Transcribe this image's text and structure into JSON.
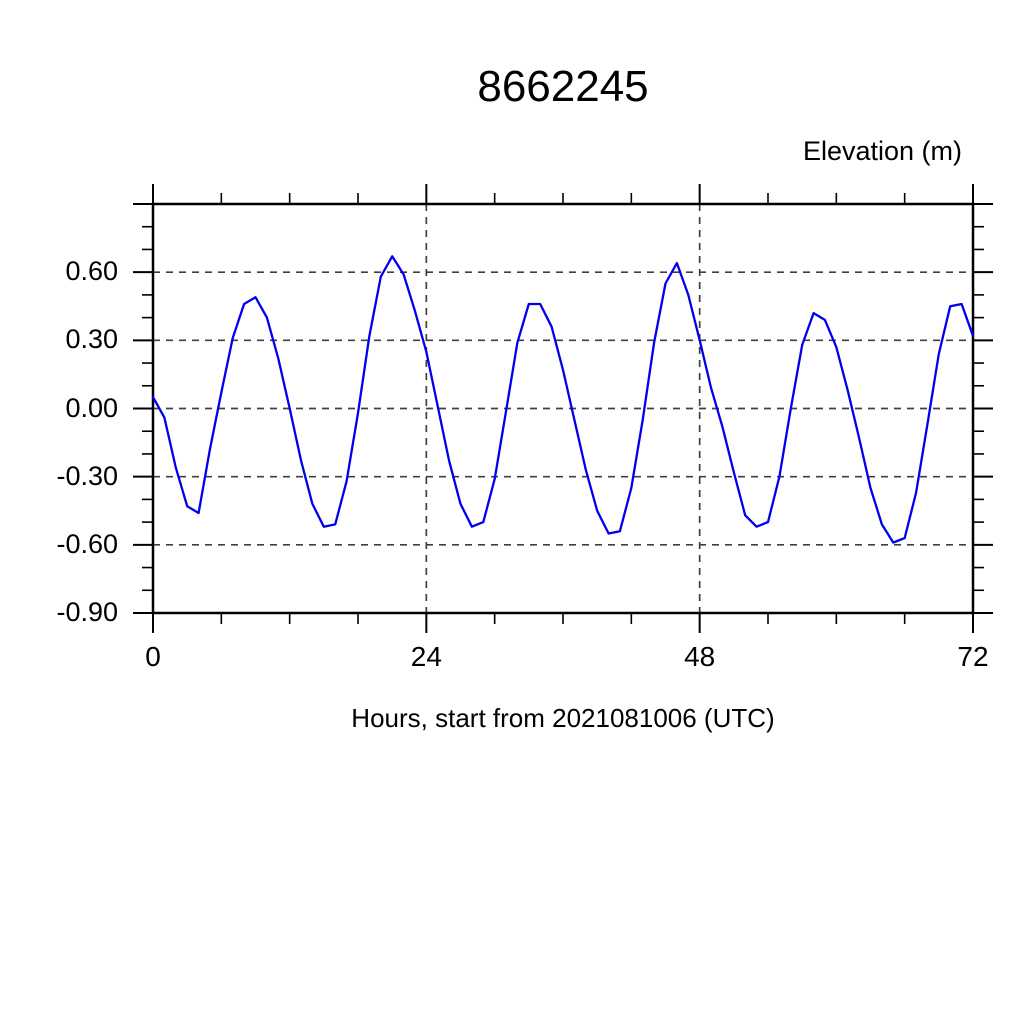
{
  "chart_data": {
    "type": "line",
    "title": "8662245",
    "ylabel": "Elevation (m)",
    "xlabel": "Hours, start from 2021081006 (UTC)",
    "x_range": [
      0,
      72
    ],
    "y_range": [
      -0.9,
      0.9
    ],
    "x_major_ticks": [
      0,
      24,
      48,
      72
    ],
    "x_tick_labels": [
      "0",
      "24",
      "48",
      "72"
    ],
    "x_minor_tick_step": 6,
    "x_gridlines": [
      24,
      48
    ],
    "y_major_ticks": [
      0.9,
      0.6,
      0.3,
      0.0,
      -0.3,
      -0.6,
      -0.9
    ],
    "y_tick_labels": [
      {
        "value": 0.6,
        "label": "0.60"
      },
      {
        "value": 0.3,
        "label": "0.30"
      },
      {
        "value": 0.0,
        "label": "0.00"
      },
      {
        "value": -0.3,
        "label": "-0.30"
      },
      {
        "value": -0.6,
        "label": "-0.60"
      },
      {
        "value": -0.9,
        "label": "-0.90"
      }
    ],
    "y_minor_tick_step": 0.1,
    "y_gridlines": [
      0.6,
      0.3,
      0.0,
      -0.3,
      -0.6
    ],
    "grid_style": "dashed",
    "legend": "none",
    "series": [
      {
        "name": "elevation",
        "x_start": 0,
        "x_step": 1,
        "values": [
          0.05,
          -0.04,
          -0.26,
          -0.43,
          -0.46,
          -0.18,
          0.07,
          0.31,
          0.46,
          0.49,
          0.4,
          0.22,
          0.0,
          -0.23,
          -0.42,
          -0.52,
          -0.51,
          -0.32,
          -0.02,
          0.32,
          0.58,
          0.67,
          0.59,
          0.43,
          0.25,
          0.01,
          -0.23,
          -0.42,
          -0.52,
          -0.5,
          -0.31,
          -0.01,
          0.29,
          0.46,
          0.46,
          0.36,
          0.17,
          -0.05,
          -0.27,
          -0.45,
          -0.55,
          -0.54,
          -0.35,
          -0.05,
          0.29,
          0.55,
          0.64,
          0.5,
          0.3,
          0.09,
          -0.08,
          -0.28,
          -0.47,
          -0.52,
          -0.5,
          -0.3,
          0.0,
          0.28,
          0.42,
          0.39,
          0.27,
          0.08,
          -0.13,
          -0.35,
          -0.51,
          -0.59,
          -0.57,
          -0.37,
          -0.07,
          0.24,
          0.45,
          0.46,
          0.32
        ]
      }
    ],
    "colors": {
      "line": "#0000EE",
      "frame": "#000000",
      "grid": "#404040",
      "text": "#000000",
      "background": "#ffffff"
    }
  }
}
